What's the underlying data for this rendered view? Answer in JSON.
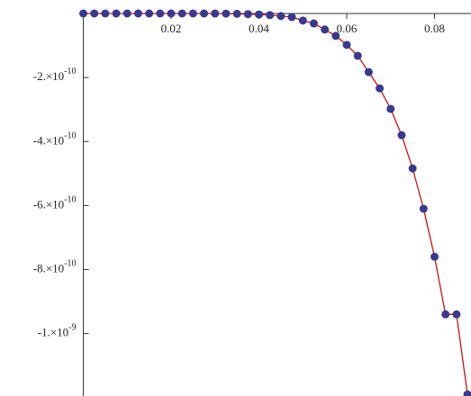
{
  "chart_data": {
    "type": "scatter",
    "x": [
      0,
      0.0025,
      0.005,
      0.0075,
      0.01,
      0.0125,
      0.015,
      0.0175,
      0.02,
      0.0225,
      0.025,
      0.0275,
      0.03,
      0.0325,
      0.035,
      0.0375,
      0.04,
      0.0425,
      0.045,
      0.0475,
      0.05,
      0.0525,
      0.055,
      0.0575,
      0.06,
      0.0625,
      0.065,
      0.0675,
      0.07,
      0.0725,
      0.075,
      0.0775,
      0.08,
      0.0825,
      0.085,
      0.0875
    ],
    "values": [
      0,
      0,
      0,
      0,
      0,
      0,
      0,
      0,
      0,
      0,
      0,
      0,
      -1e-13,
      -3e-13,
      -1e-12,
      -2e-12,
      -3e-12,
      -5e-12,
      -8e-12,
      -1.1e-11,
      -2.2e-11,
      -3.1e-11,
      -5e-11,
      -7e-11,
      -9.8e-11,
      -1.32e-10,
      -1.83e-10,
      -2.34e-10,
      -2.98e-10,
      -3.8e-10,
      -4.84e-10,
      -6.1e-10,
      -7.6e-10,
      -9.4e-10,
      -9.4e-10,
      -1.19e-09
    ],
    "color": "#3a3a8c",
    "line_color": "#cc1111",
    "xlim": [
      0,
      0.0883
    ],
    "ylim": [
      -1.195e-09,
      0
    ],
    "xticks": [
      0.02,
      0.04,
      0.06,
      0.08
    ],
    "yticks": [
      {
        "value": -2e-10,
        "label": "-2.×10",
        "exponent": "-10"
      },
      {
        "value": -4e-10,
        "label": "-4.×10",
        "exponent": "-10"
      },
      {
        "value": -6e-10,
        "label": "-6.×10",
        "exponent": "-10"
      },
      {
        "value": -8e-10,
        "label": "-8.×10",
        "exponent": "-10"
      },
      {
        "value": -1e-09,
        "label": "-1.×10",
        "exponent": "-9"
      }
    ]
  }
}
